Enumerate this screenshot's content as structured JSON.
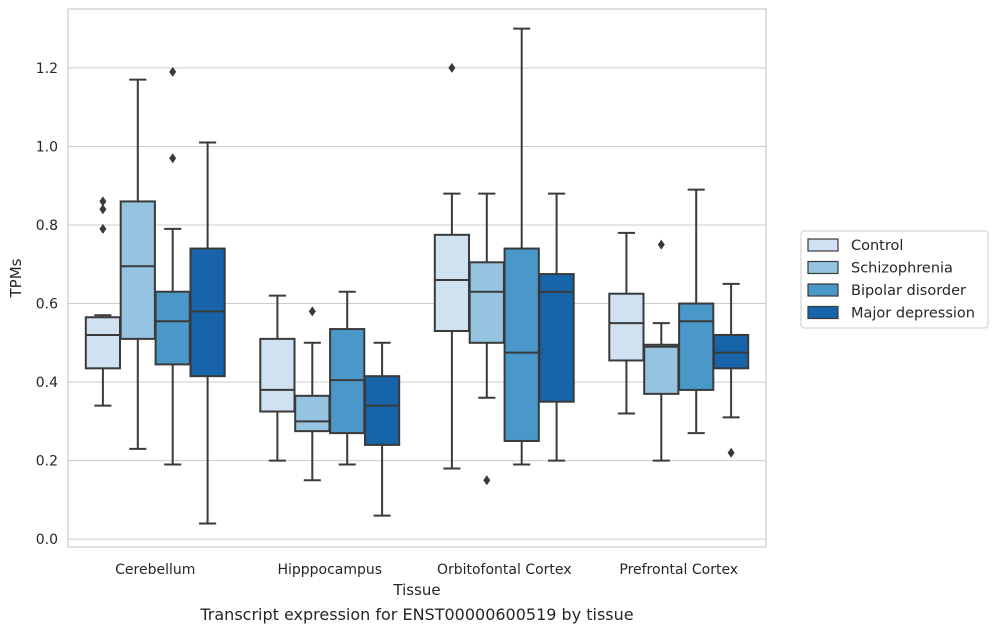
{
  "caption": "Transcript expression for ENST00000600519 by tissue",
  "chart_data": {
    "type": "box",
    "xlabel": "Tissue",
    "ylabel": "TPMs",
    "ylim": [
      -0.02,
      1.35
    ],
    "yticks": [
      "0.0",
      "0.2",
      "0.4",
      "0.6",
      "0.8",
      "1.0",
      "1.2"
    ],
    "ytick_values": [
      0.0,
      0.2,
      0.4,
      0.6,
      0.8,
      1.0,
      1.2
    ],
    "grid": "horizontal",
    "legend_position": "right",
    "categories": [
      "Cerebellum",
      "Hipppocampus",
      "Orbitofontal Cortex",
      "Prefrontal Cortex"
    ],
    "series": [
      {
        "name": "Control",
        "color": "#d0e1f2",
        "boxes": [
          {
            "whislo": 0.34,
            "q1": 0.435,
            "med": 0.52,
            "q3": 0.565,
            "whishi": 0.57,
            "fliers": [
              0.79,
              0.84,
              0.86
            ]
          },
          {
            "whislo": 0.2,
            "q1": 0.325,
            "med": 0.38,
            "q3": 0.51,
            "whishi": 0.62,
            "fliers": []
          },
          {
            "whislo": 0.18,
            "q1": 0.53,
            "med": 0.66,
            "q3": 0.775,
            "whishi": 0.88,
            "fliers": [
              1.2
            ]
          },
          {
            "whislo": 0.32,
            "q1": 0.455,
            "med": 0.55,
            "q3": 0.625,
            "whishi": 0.78,
            "fliers": []
          }
        ]
      },
      {
        "name": "Schizophrenia",
        "color": "#94c4df",
        "boxes": [
          {
            "whislo": 0.23,
            "q1": 0.51,
            "med": 0.695,
            "q3": 0.86,
            "whishi": 1.17,
            "fliers": []
          },
          {
            "whislo": 0.15,
            "q1": 0.275,
            "med": 0.3,
            "q3": 0.365,
            "whishi": 0.5,
            "fliers": [
              0.58
            ]
          },
          {
            "whislo": 0.36,
            "q1": 0.5,
            "med": 0.63,
            "q3": 0.705,
            "whishi": 0.88,
            "fliers": [
              0.15
            ]
          },
          {
            "whislo": 0.2,
            "q1": 0.37,
            "med": 0.49,
            "q3": 0.495,
            "whishi": 0.55,
            "fliers": [
              0.75
            ]
          }
        ]
      },
      {
        "name": "Bipolar disorder",
        "color": "#4a98c9",
        "boxes": [
          {
            "whislo": 0.19,
            "q1": 0.445,
            "med": 0.555,
            "q3": 0.63,
            "whishi": 0.79,
            "fliers": [
              0.97,
              1.19
            ]
          },
          {
            "whislo": 0.19,
            "q1": 0.27,
            "med": 0.405,
            "q3": 0.535,
            "whishi": 0.63,
            "fliers": []
          },
          {
            "whislo": 0.19,
            "q1": 0.25,
            "med": 0.475,
            "q3": 0.74,
            "whishi": 1.3,
            "fliers": []
          },
          {
            "whislo": 0.27,
            "q1": 0.38,
            "med": 0.555,
            "q3": 0.6,
            "whishi": 0.89,
            "fliers": []
          }
        ]
      },
      {
        "name": "Major depression",
        "color": "#1764ab",
        "boxes": [
          {
            "whislo": 0.04,
            "q1": 0.415,
            "med": 0.58,
            "q3": 0.74,
            "whishi": 1.01,
            "fliers": []
          },
          {
            "whislo": 0.06,
            "q1": 0.24,
            "med": 0.34,
            "q3": 0.415,
            "whishi": 0.5,
            "fliers": []
          },
          {
            "whislo": 0.2,
            "q1": 0.35,
            "med": 0.63,
            "q3": 0.675,
            "whishi": 0.88,
            "fliers": []
          },
          {
            "whislo": 0.31,
            "q1": 0.435,
            "med": 0.475,
            "q3": 0.52,
            "whishi": 0.65,
            "fliers": [
              0.22
            ]
          }
        ]
      }
    ]
  }
}
